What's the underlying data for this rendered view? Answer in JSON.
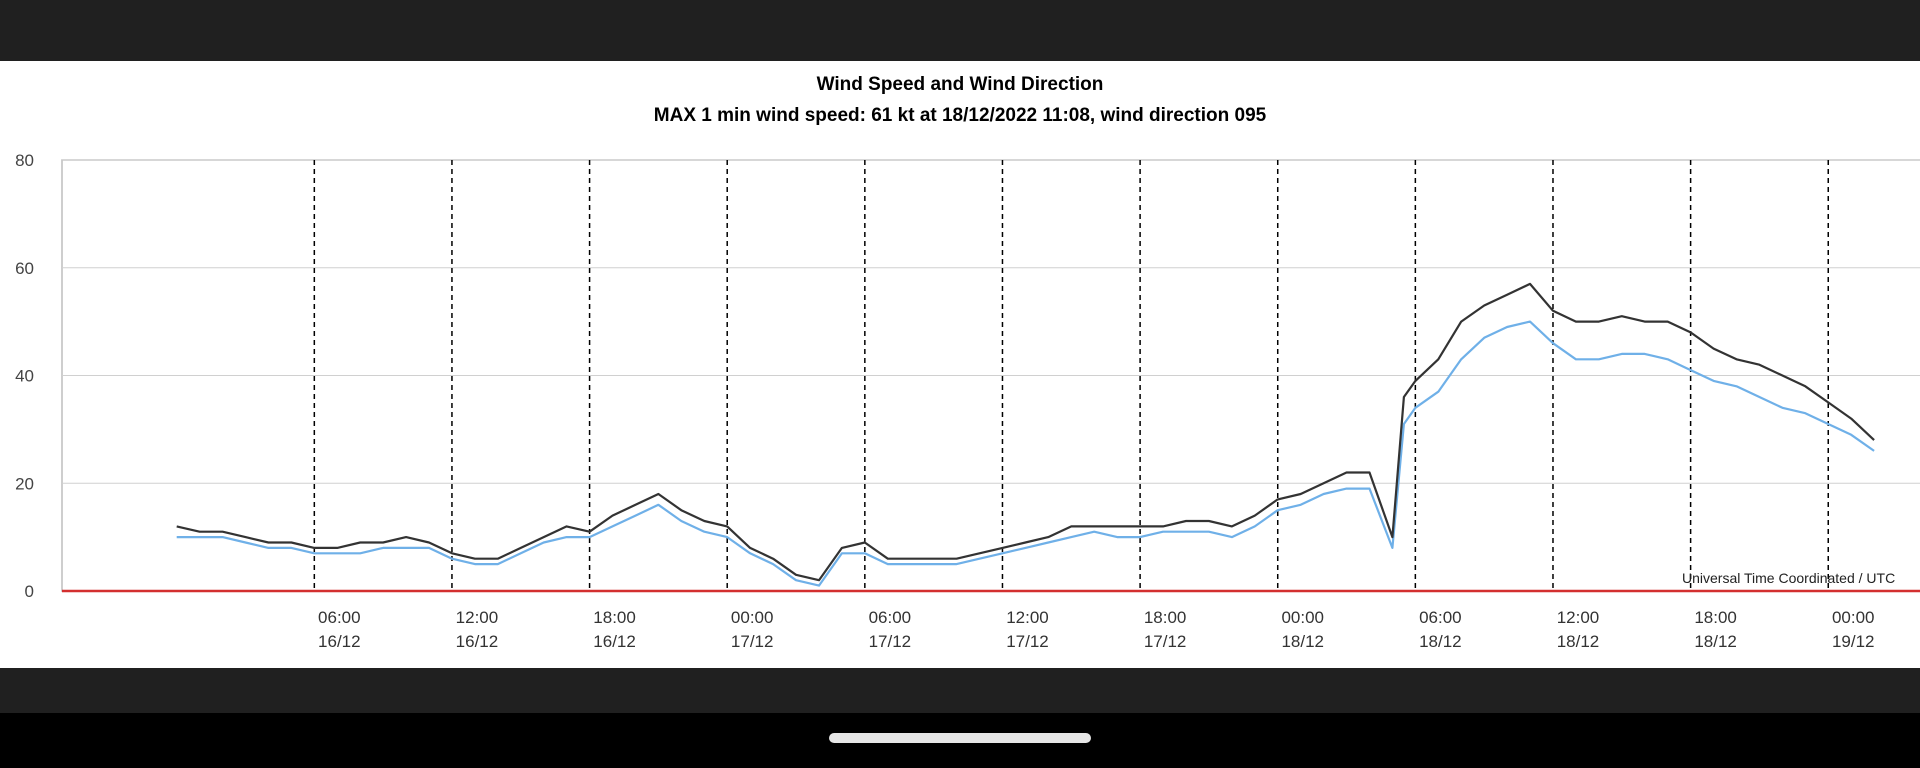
{
  "chart_data": {
    "type": "line",
    "title": "Wind Speed and Wind Direction",
    "subtitle": "MAX 1 min wind speed: 61 kt at 18/12/2022 11:08, wind direction 095",
    "annotation": "Universal Time Coordinated / UTC",
    "xlim_hours": [
      -5,
      76
    ],
    "ylim": [
      0,
      80
    ],
    "yticks": [
      0,
      20,
      40,
      60,
      80
    ],
    "grid": "horizontal solid, vertical dashed at 6-hour ticks",
    "xticks": [
      {
        "hour": 6,
        "time": "06:00",
        "date": "16/12"
      },
      {
        "hour": 12,
        "time": "12:00",
        "date": "16/12"
      },
      {
        "hour": 18,
        "time": "18:00",
        "date": "16/12"
      },
      {
        "hour": 24,
        "time": "00:00",
        "date": "17/12"
      },
      {
        "hour": 30,
        "time": "06:00",
        "date": "17/12"
      },
      {
        "hour": 36,
        "time": "12:00",
        "date": "17/12"
      },
      {
        "hour": 42,
        "time": "18:00",
        "date": "17/12"
      },
      {
        "hour": 48,
        "time": "00:00",
        "date": "18/12"
      },
      {
        "hour": 54,
        "time": "06:00",
        "date": "18/12"
      },
      {
        "hour": 60,
        "time": "12:00",
        "date": "18/12"
      },
      {
        "hour": 66,
        "time": "18:00",
        "date": "18/12"
      },
      {
        "hour": 72,
        "time": "00:00",
        "date": "19/12"
      }
    ],
    "series": [
      {
        "color": "#333333",
        "points": [
          [
            0,
            12
          ],
          [
            1,
            11
          ],
          [
            2,
            11
          ],
          [
            3,
            10
          ],
          [
            4,
            9
          ],
          [
            5,
            9
          ],
          [
            6,
            8
          ],
          [
            7,
            8
          ],
          [
            8,
            9
          ],
          [
            9,
            9
          ],
          [
            10,
            10
          ],
          [
            11,
            9
          ],
          [
            12,
            7
          ],
          [
            13,
            6
          ],
          [
            14,
            6
          ],
          [
            15,
            8
          ],
          [
            16,
            10
          ],
          [
            17,
            12
          ],
          [
            18,
            11
          ],
          [
            19,
            14
          ],
          [
            20,
            16
          ],
          [
            21,
            18
          ],
          [
            22,
            15
          ],
          [
            23,
            13
          ],
          [
            24,
            12
          ],
          [
            25,
            8
          ],
          [
            26,
            6
          ],
          [
            27,
            3
          ],
          [
            28,
            2
          ],
          [
            29,
            8
          ],
          [
            30,
            9
          ],
          [
            31,
            6
          ],
          [
            32,
            6
          ],
          [
            33,
            6
          ],
          [
            34,
            6
          ],
          [
            35,
            7
          ],
          [
            36,
            8
          ],
          [
            37,
            9
          ],
          [
            38,
            10
          ],
          [
            39,
            12
          ],
          [
            40,
            12
          ],
          [
            41,
            12
          ],
          [
            42,
            12
          ],
          [
            43,
            12
          ],
          [
            44,
            13
          ],
          [
            45,
            13
          ],
          [
            46,
            12
          ],
          [
            47,
            14
          ],
          [
            48,
            17
          ],
          [
            49,
            18
          ],
          [
            50,
            20
          ],
          [
            51,
            22
          ],
          [
            52,
            22
          ],
          [
            53,
            10
          ],
          [
            53.5,
            36
          ],
          [
            54,
            39
          ],
          [
            55,
            43
          ],
          [
            56,
            50
          ],
          [
            57,
            53
          ],
          [
            58,
            55
          ],
          [
            59,
            57
          ],
          [
            60,
            52
          ],
          [
            61,
            50
          ],
          [
            62,
            50
          ],
          [
            63,
            51
          ],
          [
            64,
            50
          ],
          [
            65,
            50
          ],
          [
            66,
            48
          ],
          [
            67,
            45
          ],
          [
            68,
            43
          ],
          [
            69,
            42
          ],
          [
            70,
            40
          ],
          [
            71,
            38
          ],
          [
            72,
            35
          ],
          [
            73,
            32
          ],
          [
            74,
            28
          ]
        ]
      },
      {
        "color": "#6fb0e8",
        "points": [
          [
            0,
            10
          ],
          [
            1,
            10
          ],
          [
            2,
            10
          ],
          [
            3,
            9
          ],
          [
            4,
            8
          ],
          [
            5,
            8
          ],
          [
            6,
            7
          ],
          [
            7,
            7
          ],
          [
            8,
            7
          ],
          [
            9,
            8
          ],
          [
            10,
            8
          ],
          [
            11,
            8
          ],
          [
            12,
            6
          ],
          [
            13,
            5
          ],
          [
            14,
            5
          ],
          [
            15,
            7
          ],
          [
            16,
            9
          ],
          [
            17,
            10
          ],
          [
            18,
            10
          ],
          [
            19,
            12
          ],
          [
            20,
            14
          ],
          [
            21,
            16
          ],
          [
            22,
            13
          ],
          [
            23,
            11
          ],
          [
            24,
            10
          ],
          [
            25,
            7
          ],
          [
            26,
            5
          ],
          [
            27,
            2
          ],
          [
            28,
            1
          ],
          [
            29,
            7
          ],
          [
            30,
            7
          ],
          [
            31,
            5
          ],
          [
            32,
            5
          ],
          [
            33,
            5
          ],
          [
            34,
            5
          ],
          [
            35,
            6
          ],
          [
            36,
            7
          ],
          [
            37,
            8
          ],
          [
            38,
            9
          ],
          [
            39,
            10
          ],
          [
            40,
            11
          ],
          [
            41,
            10
          ],
          [
            42,
            10
          ],
          [
            43,
            11
          ],
          [
            44,
            11
          ],
          [
            45,
            11
          ],
          [
            46,
            10
          ],
          [
            47,
            12
          ],
          [
            48,
            15
          ],
          [
            49,
            16
          ],
          [
            50,
            18
          ],
          [
            51,
            19
          ],
          [
            52,
            19
          ],
          [
            53,
            8
          ],
          [
            53.5,
            31
          ],
          [
            54,
            34
          ],
          [
            55,
            37
          ],
          [
            56,
            43
          ],
          [
            57,
            47
          ],
          [
            58,
            49
          ],
          [
            59,
            50
          ],
          [
            60,
            46
          ],
          [
            61,
            43
          ],
          [
            62,
            43
          ],
          [
            63,
            44
          ],
          [
            64,
            44
          ],
          [
            65,
            43
          ],
          [
            66,
            41
          ],
          [
            67,
            39
          ],
          [
            68,
            38
          ],
          [
            69,
            36
          ],
          [
            70,
            34
          ],
          [
            71,
            33
          ],
          [
            72,
            31
          ],
          [
            73,
            29
          ],
          [
            74,
            26
          ]
        ]
      }
    ],
    "baseline": {
      "value": 0,
      "color": "#d32f2f"
    }
  }
}
